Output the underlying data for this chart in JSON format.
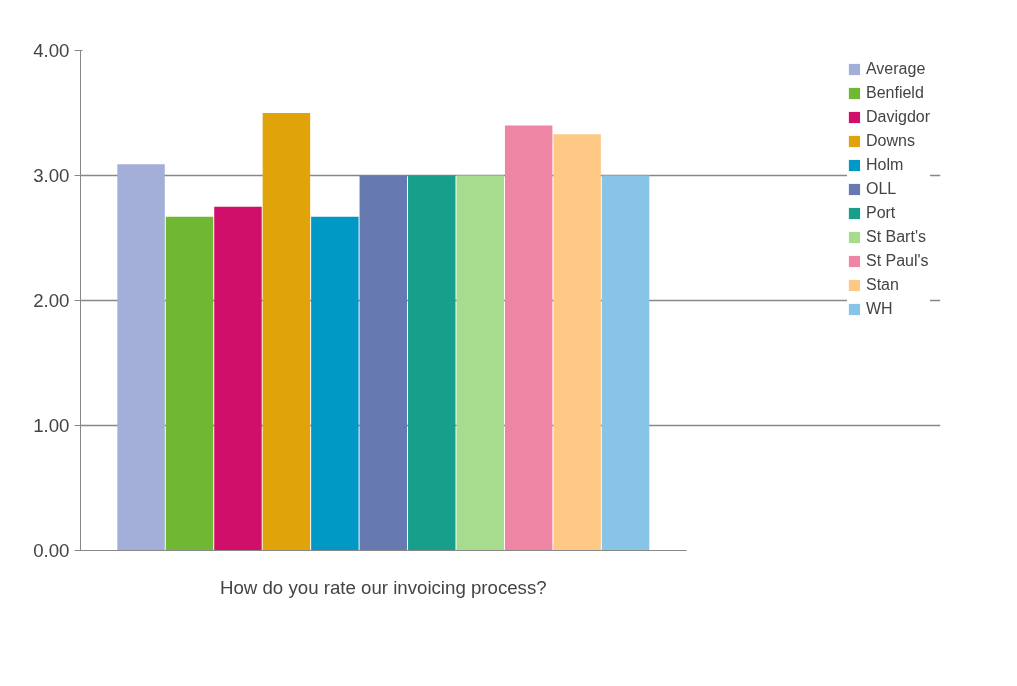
{
  "chart_data": {
    "type": "bar",
    "categories": [
      "How do you rate our invoicing process?"
    ],
    "series": [
      {
        "name": "Average",
        "color": "#a3afd9",
        "values": [
          3.09
        ]
      },
      {
        "name": "Benfield",
        "color": "#70b833",
        "values": [
          2.67
        ]
      },
      {
        "name": "Davigdor",
        "color": "#cf0f69",
        "values": [
          2.75
        ]
      },
      {
        "name": "Downs",
        "color": "#e0a30a",
        "values": [
          3.5
        ]
      },
      {
        "name": "Holm",
        "color": "#0099c6",
        "values": [
          2.67
        ]
      },
      {
        "name": "OLL",
        "color": "#6679b0",
        "values": [
          3.0
        ]
      },
      {
        "name": "Port",
        "color": "#189f8c",
        "values": [
          3.0
        ]
      },
      {
        "name": "St Bart's",
        "color": "#a7dc8f",
        "values": [
          3.0
        ]
      },
      {
        "name": "St Paul's",
        "color": "#ee85a5",
        "values": [
          3.4
        ]
      },
      {
        "name": "Stan",
        "color": "#fdc985",
        "values": [
          3.33
        ]
      },
      {
        "name": "WH",
        "color": "#87c4e5",
        "values": [
          3.0
        ]
      }
    ],
    "ylim": [
      0,
      4
    ],
    "yticks": [
      {
        "value": 0,
        "label": "0.00"
      },
      {
        "value": 1,
        "label": "1.00"
      },
      {
        "value": 2,
        "label": "2.00"
      },
      {
        "value": 3,
        "label": "3.00"
      },
      {
        "value": 4,
        "label": "4.00"
      }
    ],
    "grid": "y",
    "legend": "right"
  }
}
